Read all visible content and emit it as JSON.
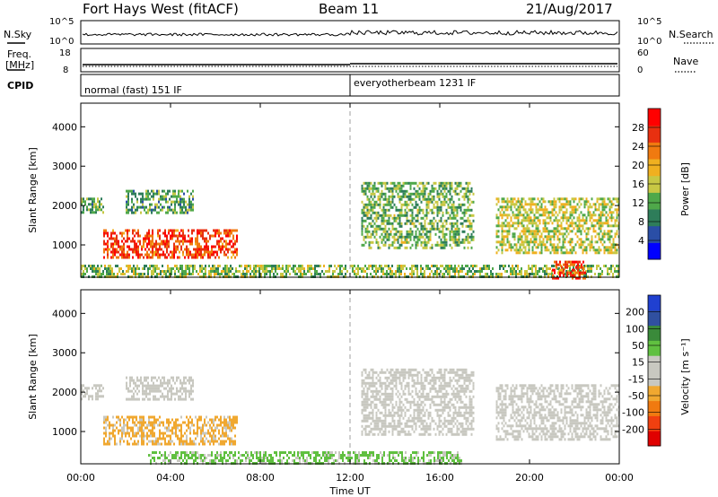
{
  "header": {
    "station": "Fort Hays West (fitACF)",
    "beam": "Beam 11",
    "date": "21/Aug/2017"
  },
  "noise_panel": {
    "left_label": "N.Sky",
    "right_label": "N.Search",
    "left_ticks": [
      "10^5",
      "10^0"
    ],
    "right_ticks": [
      "10^5",
      "10^0"
    ]
  },
  "freq_panel": {
    "left_label_1": "Freq.",
    "left_label_2": "[MHz]",
    "right_label": "Nave",
    "left_ticks": [
      "18",
      "8"
    ],
    "right_ticks": [
      "60",
      "0"
    ]
  },
  "cpid_panel": {
    "label": "CPID",
    "modes": [
      {
        "text": "normal (fast) 151 IF",
        "start_hour": 0.0
      },
      {
        "text": "everyotherbeam 1231 IF",
        "start_hour": 12.0
      }
    ]
  },
  "x_axis": {
    "label": "Time UT",
    "range_hours": [
      0,
      24
    ],
    "ticks": [
      "00:00",
      "04:00",
      "08:00",
      "12:00",
      "16:00",
      "20:00",
      "00:00"
    ]
  },
  "colors": {
    "power_scale": [
      "#0000ff",
      "#2a4ea6",
      "#2e7d5a",
      "#4fa84a",
      "#c8c844",
      "#f0b020",
      "#f07a10",
      "#e83010",
      "#ff0000"
    ],
    "velocity_scale": [
      "#e00000",
      "#f04010",
      "#f07a10",
      "#f0a830",
      "#c8c8c0",
      "#c8c8c0",
      "#60c040",
      "#3a8a3a",
      "#3050a0",
      "#2040d0"
    ],
    "ground_scatter": "#b4b4b4"
  },
  "chart_data": [
    {
      "type": "heatmap",
      "name": "power",
      "ylabel": "Slant Range [km]",
      "xlabel": "",
      "yticks": [
        "1000",
        "2000",
        "3000",
        "4000"
      ],
      "ylim": [
        180,
        4600
      ],
      "xlim": [
        0,
        24
      ],
      "colorbar": {
        "label": "Power [dB]",
        "ticks": [
          "4",
          "8",
          "12",
          "16",
          "20",
          "24",
          "28"
        ],
        "range": [
          0,
          32
        ]
      },
      "regions": [
        {
          "t": [
            1.0,
            7.0
          ],
          "r": [
            650,
            1400
          ],
          "level": 26
        },
        {
          "t": [
            0.0,
            1.0
          ],
          "r": [
            1800,
            2200
          ],
          "level": 12
        },
        {
          "t": [
            2.0,
            5.0
          ],
          "r": [
            1800,
            2400
          ],
          "level": 11
        },
        {
          "t": [
            0.0,
            24.0
          ],
          "r": [
            180,
            500
          ],
          "level": 14
        },
        {
          "t": [
            12.5,
            17.5
          ],
          "r": [
            900,
            2600
          ],
          "level": 13
        },
        {
          "t": [
            18.5,
            24.0
          ],
          "r": [
            800,
            2200
          ],
          "level": 16
        },
        {
          "t": [
            21.0,
            22.5
          ],
          "r": [
            180,
            600
          ],
          "level": 26
        }
      ]
    },
    {
      "type": "heatmap",
      "name": "velocity",
      "ylabel": "Slant Range [km]",
      "xlabel": "Time UT",
      "yticks": [
        "1000",
        "2000",
        "3000",
        "4000"
      ],
      "ylim": [
        180,
        4600
      ],
      "xlim": [
        0,
        24
      ],
      "colorbar": {
        "label": "Velocity [m s⁻¹]",
        "ticks": [
          "200",
          "100",
          "50",
          "15",
          "-15",
          "-50",
          "-100",
          "-200"
        ],
        "range": [
          -250,
          250
        ]
      },
      "regions": [
        {
          "t": [
            1.0,
            7.0
          ],
          "r": [
            650,
            1400
          ],
          "velocity": -60
        },
        {
          "t": [
            0.0,
            1.0
          ],
          "r": [
            1800,
            2200
          ],
          "velocity": 0
        },
        {
          "t": [
            2.0,
            5.0
          ],
          "r": [
            1800,
            2400
          ],
          "velocity": 0
        },
        {
          "t": [
            3.0,
            17.0
          ],
          "r": [
            180,
            500
          ],
          "velocity": 60
        },
        {
          "t": [
            12.5,
            17.5
          ],
          "r": [
            900,
            2600
          ],
          "velocity": 0
        },
        {
          "t": [
            18.5,
            24.0
          ],
          "r": [
            800,
            2200
          ],
          "velocity": 0
        }
      ]
    }
  ]
}
